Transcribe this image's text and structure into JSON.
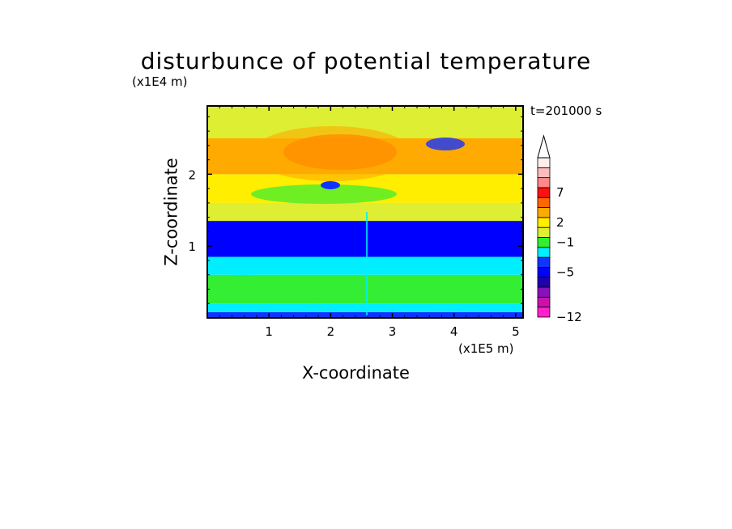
{
  "chart_data": {
    "type": "heatmap",
    "title": "disturbunce of potential temperature",
    "annotation": "t=201000 s",
    "xlabel": "X-coordinate",
    "ylabel": "Z-coordinate",
    "x_unit": "(x1E5 m)",
    "y_unit": "(x1E4 m)",
    "xlim": [
      0.0,
      5.12
    ],
    "ylim": [
      0.0,
      2.95
    ],
    "x_ticks": [
      "1",
      "2",
      "3",
      "4",
      "5"
    ],
    "y_ticks": [
      "1",
      "2"
    ],
    "colorbar": {
      "extend": "max",
      "colors": [
        "#ff22cc",
        "#cc11aa",
        "#8811bb",
        "#2200aa",
        "#0000ff",
        "#1133ff",
        "#00eeff",
        "#33ee33",
        "#ddee33",
        "#ffee00",
        "#ffaa00",
        "#ff6600",
        "#ff1111",
        "#ff8888",
        "#ffbbbb",
        "#ffeeee"
      ],
      "tick_labels": [
        "-12",
        "-5",
        "-1",
        "2",
        "7"
      ]
    },
    "bands": [
      {
        "z": [
          0.0,
          0.08
        ],
        "value": -2
      },
      {
        "z": [
          0.08,
          0.2
        ],
        "value": -1
      },
      {
        "z": [
          0.2,
          0.6
        ],
        "value": 0
      },
      {
        "z": [
          0.6,
          0.85
        ],
        "value": -1
      },
      {
        "z": [
          0.85,
          1.35
        ],
        "value": -4
      },
      {
        "z": [
          1.35,
          1.6
        ],
        "value": 1
      },
      {
        "z": [
          1.6,
          2.0
        ],
        "value": 2
      },
      {
        "z": [
          2.0,
          2.5
        ],
        "value": 3
      },
      {
        "z": [
          2.5,
          2.95
        ],
        "value": 1
      }
    ]
  }
}
